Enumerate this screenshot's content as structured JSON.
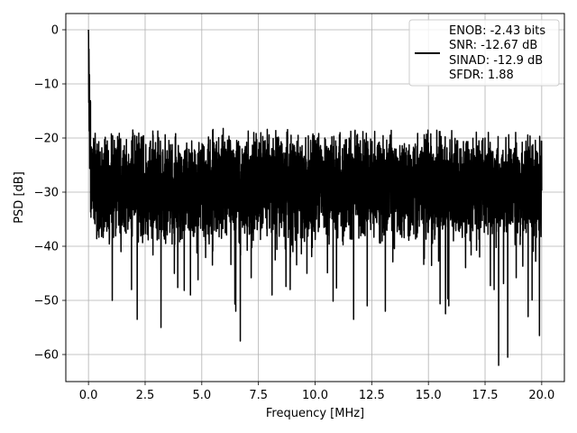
{
  "chart_data": {
    "type": "line",
    "title": "",
    "xlabel": "Frequency [MHz]",
    "ylabel": "PSD [dB]",
    "xlim": [
      -1.0,
      21.0
    ],
    "ylim": [
      -65.0,
      3.0
    ],
    "x_ticks": [
      0.0,
      2.5,
      5.0,
      7.5,
      10.0,
      12.5,
      15.0,
      17.5,
      20.0
    ],
    "x_tick_labels": [
      "0.0",
      "2.5",
      "5.0",
      "7.5",
      "10.0",
      "12.5",
      "15.0",
      "17.5",
      "20.0"
    ],
    "y_ticks": [
      0,
      -10,
      -20,
      -30,
      -40,
      -50,
      -60
    ],
    "y_tick_labels": [
      "0",
      "−10",
      "−20",
      "−30",
      "−40",
      "−50",
      "−60"
    ],
    "grid": true,
    "legend_position": "top-right",
    "line_color": "#000000",
    "series": [
      {
        "legend_lines": [
          "ENOB: -2.43 bits",
          "SNR: -12.67 dB",
          "SINAD: -12.9 dB",
          "SFDR: 1.88"
        ],
        "x_range_mhz": [
          0.0,
          20.0
        ],
        "peak": {
          "x": 0.0,
          "y": 0.0
        },
        "noise_floor_db": -29,
        "noise_max_db": -17,
        "noise_min_db": -62,
        "notable_dips": [
          {
            "x": 1.05,
            "y": -50
          },
          {
            "x": 1.9,
            "y": -48
          },
          {
            "x": 2.15,
            "y": -53.5
          },
          {
            "x": 3.2,
            "y": -55
          },
          {
            "x": 4.5,
            "y": -49
          },
          {
            "x": 6.5,
            "y": -52
          },
          {
            "x": 6.7,
            "y": -57.5
          },
          {
            "x": 8.1,
            "y": -49
          },
          {
            "x": 8.9,
            "y": -48
          },
          {
            "x": 11.7,
            "y": -53.5
          },
          {
            "x": 12.3,
            "y": -51
          },
          {
            "x": 13.1,
            "y": -52
          },
          {
            "x": 15.9,
            "y": -51
          },
          {
            "x": 17.9,
            "y": -48
          },
          {
            "x": 18.1,
            "y": -62
          },
          {
            "x": 18.5,
            "y": -60.5
          },
          {
            "x": 19.4,
            "y": -53
          },
          {
            "x": 19.9,
            "y": -56.5
          }
        ]
      }
    ]
  }
}
